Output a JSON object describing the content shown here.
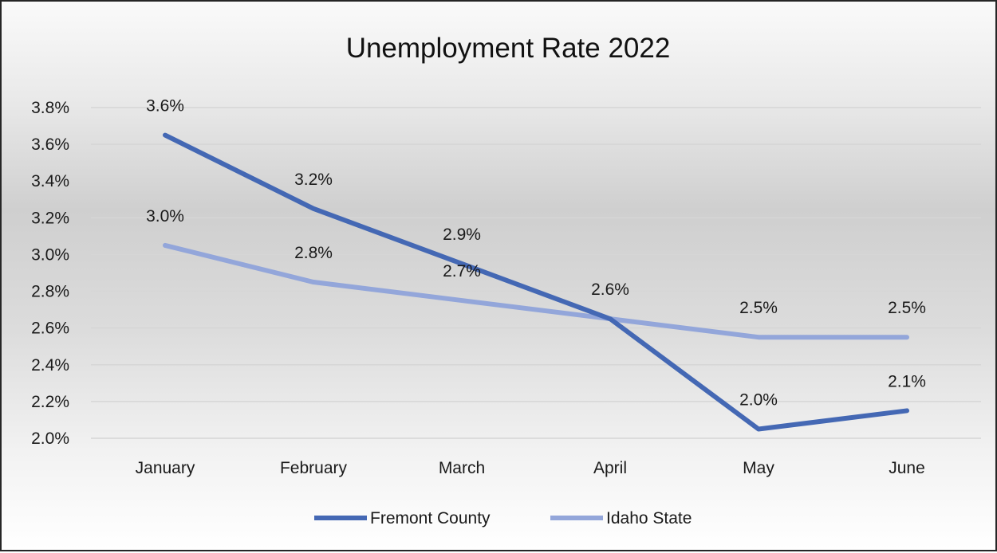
{
  "chart_data": {
    "type": "line",
    "title": "Unemployment Rate 2022",
    "xlabel": "",
    "ylabel": "",
    "categories": [
      "January",
      "February",
      "March",
      "April",
      "May",
      "June"
    ],
    "y_ticks": [
      "2.0%",
      "2.2%",
      "2.4%",
      "2.6%",
      "2.8%",
      "3.0%",
      "3.2%",
      "3.4%",
      "3.6%",
      "3.8%"
    ],
    "ylim": [
      2.0,
      3.8
    ],
    "grid": true,
    "legend_position": "bottom",
    "series": [
      {
        "name": "Fremont County",
        "color": "#4468b4",
        "values": [
          3.65,
          3.25,
          2.95,
          2.65,
          2.05,
          2.15
        ],
        "labels": [
          "3.6%",
          "3.2%",
          "2.9%",
          "2.6%",
          "2.0%",
          "2.1%"
        ]
      },
      {
        "name": "Idaho State",
        "color": "#93a6da",
        "values": [
          3.05,
          2.85,
          2.75,
          2.65,
          2.55,
          2.55
        ],
        "labels": [
          "3.0%",
          "2.8%",
          "2.7%",
          "",
          "2.5%",
          "2.5%"
        ]
      }
    ]
  }
}
